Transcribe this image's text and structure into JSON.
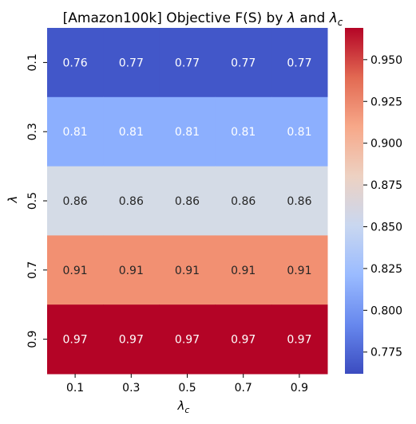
{
  "chart_data": {
    "type": "heatmap",
    "title_main": "[Amazon100k] Objective F(S) by ",
    "title_lambda": "λ",
    "title_and": " and ",
    "title_lambda_c": "λ",
    "title_lambda_c_sub": "c",
    "xlabel": "λ",
    "xlabel_sub": "c",
    "ylabel": "λ",
    "x_categories": [
      "0.1",
      "0.3",
      "0.5",
      "0.7",
      "0.9"
    ],
    "y_categories": [
      "0.1",
      "0.3",
      "0.5",
      "0.7",
      "0.9"
    ],
    "values": [
      [
        0.76,
        0.77,
        0.77,
        0.77,
        0.77
      ],
      [
        0.81,
        0.81,
        0.81,
        0.81,
        0.81
      ],
      [
        0.86,
        0.86,
        0.86,
        0.86,
        0.86
      ],
      [
        0.91,
        0.91,
        0.91,
        0.91,
        0.91
      ],
      [
        0.97,
        0.97,
        0.97,
        0.97,
        0.97
      ]
    ],
    "cell_labels": [
      [
        "0.76",
        "0.77",
        "0.77",
        "0.77",
        "0.77"
      ],
      [
        "0.81",
        "0.81",
        "0.81",
        "0.81",
        "0.81"
      ],
      [
        "0.86",
        "0.86",
        "0.86",
        "0.86",
        "0.86"
      ],
      [
        "0.91",
        "0.91",
        "0.91",
        "0.91",
        "0.91"
      ],
      [
        "0.97",
        "0.97",
        "0.97",
        "0.97",
        "0.97"
      ]
    ],
    "colormap": "coolwarm",
    "vmin": 0.762,
    "vmax": 0.969,
    "colorbar_ticks": [
      0.775,
      0.8,
      0.825,
      0.85,
      0.875,
      0.9,
      0.925,
      0.95
    ],
    "colorbar_tick_labels": [
      "0.775",
      "0.800",
      "0.825",
      "0.850",
      "0.875",
      "0.900",
      "0.925",
      "0.950"
    ],
    "colors": {
      "rows": [
        "#4257c9",
        "#8caffe",
        "#d4dbe6",
        "#f29072",
        "#b40426"
      ],
      "cmap_stops": [
        "#3b4cc0",
        "#6788ee",
        "#9abbff",
        "#c9d7f0",
        "#edd1c2",
        "#f7a889",
        "#e26952",
        "#b40426"
      ],
      "text_light": "#ffffff",
      "text_dark": "#262626"
    }
  }
}
